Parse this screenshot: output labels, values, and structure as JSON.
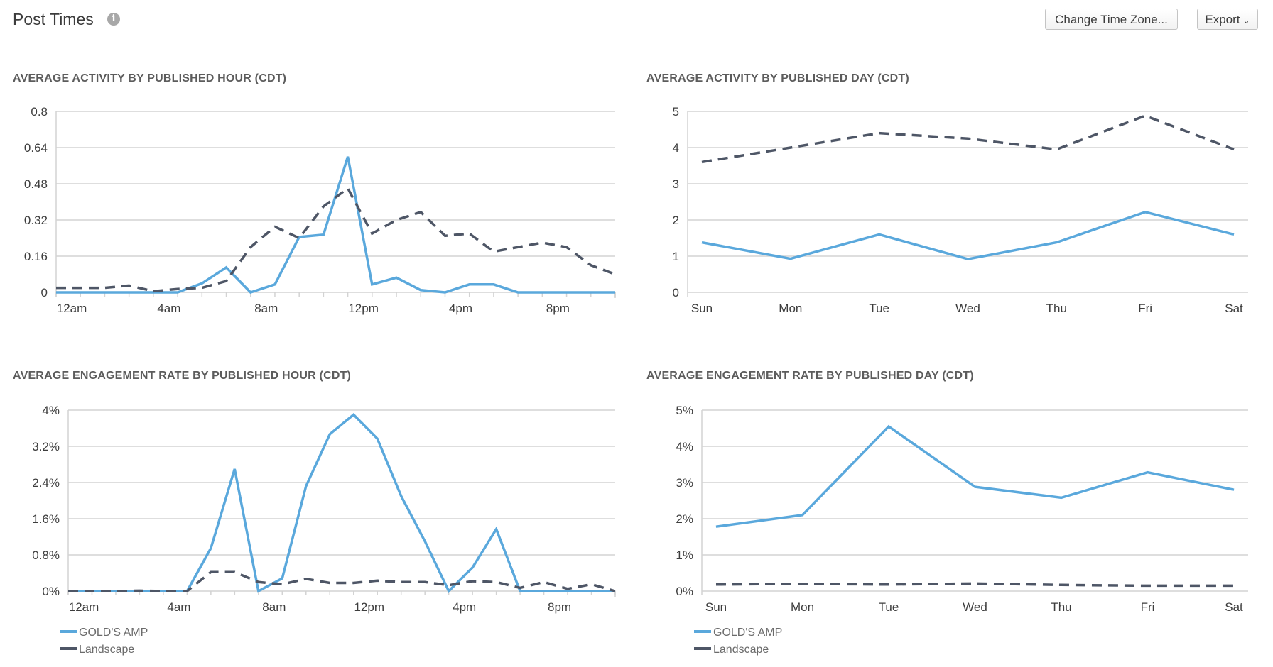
{
  "header": {
    "title": "Post Times",
    "change_tz_label": "Change Time Zone...",
    "export_label": "Export",
    "export_chevron": "⌄"
  },
  "colors": {
    "series_primary": "#5aa8dc",
    "series_secondary": "#4e5666",
    "grid": "#d3d3d3",
    "axis_text": "#3d3d3d"
  },
  "legend": [
    {
      "name": "GOLD'S AMP",
      "style": "solid"
    },
    {
      "name": "Landscape",
      "style": "dashed"
    }
  ],
  "chart_data": [
    {
      "type": "line",
      "title": "AVERAGE ACTIVITY BY PUBLISHED HOUR (CDT)",
      "x": [
        0,
        1,
        2,
        3,
        4,
        5,
        6,
        7,
        8,
        9,
        10,
        11,
        12,
        13,
        14,
        15,
        16,
        17,
        18,
        19,
        20,
        21,
        22,
        23
      ],
      "xtick_values": [
        0,
        4,
        8,
        12,
        16,
        20
      ],
      "xtick_labels": [
        "12am",
        "4am",
        "8am",
        "12pm",
        "4pm",
        "8pm"
      ],
      "ylim": [
        0,
        0.8
      ],
      "yticks": [
        0,
        0.16,
        0.32,
        0.48,
        0.64,
        0.8
      ],
      "ytick_labels": [
        "0",
        "0.16",
        "0.32",
        "0.48",
        "0.64",
        "0.8"
      ],
      "series": [
        {
          "name": "GOLD'S AMP",
          "values": [
            0,
            0,
            0,
            0,
            0,
            0,
            0.04,
            0.11,
            0,
            0.035,
            0.245,
            0.255,
            0.6,
            0.035,
            0.065,
            0.01,
            0,
            0.035,
            0.035,
            0,
            0,
            0,
            0,
            0
          ]
        },
        {
          "name": "Landscape",
          "values": [
            0.02,
            0.02,
            0.02,
            0.03,
            0.005,
            0.015,
            0.02,
            0.05,
            0.2,
            0.29,
            0.24,
            0.38,
            0.46,
            0.26,
            0.32,
            0.355,
            0.25,
            0.26,
            0.18,
            0.2,
            0.22,
            0.2,
            0.12,
            0.08
          ]
        }
      ]
    },
    {
      "type": "line",
      "title": "AVERAGE ACTIVITY BY PUBLISHED DAY (CDT)",
      "categories": [
        "Sun",
        "Mon",
        "Tue",
        "Wed",
        "Thu",
        "Fri",
        "Sat"
      ],
      "ylim": [
        0,
        5
      ],
      "yticks": [
        0,
        1,
        2,
        3,
        4,
        5
      ],
      "ytick_labels": [
        "0",
        "1",
        "2",
        "3",
        "4",
        "5"
      ],
      "series": [
        {
          "name": "GOLD'S AMP",
          "values": [
            1.38,
            0.93,
            1.6,
            0.92,
            1.38,
            2.22,
            1.6
          ]
        },
        {
          "name": "Landscape",
          "values": [
            3.6,
            4.0,
            4.4,
            4.25,
            3.95,
            4.88,
            3.95
          ]
        }
      ]
    },
    {
      "type": "line",
      "title": "AVERAGE ENGAGEMENT RATE BY PUBLISHED HOUR (CDT)",
      "x": [
        0,
        1,
        2,
        3,
        4,
        5,
        6,
        7,
        8,
        9,
        10,
        11,
        12,
        13,
        14,
        15,
        16,
        17,
        18,
        19,
        20,
        21,
        22,
        23
      ],
      "xtick_values": [
        0,
        4,
        8,
        12,
        16,
        20
      ],
      "xtick_labels": [
        "12am",
        "4am",
        "8am",
        "12pm",
        "4pm",
        "8pm"
      ],
      "ylim": [
        0,
        4
      ],
      "yticks": [
        0,
        0.8,
        1.6,
        2.4,
        3.2,
        4
      ],
      "ytick_labels": [
        "0%",
        "0.8%",
        "1.6%",
        "2.4%",
        "3.2%",
        "4%"
      ],
      "series": [
        {
          "name": "GOLD'S AMP",
          "values": [
            0,
            0,
            0,
            0,
            0,
            0,
            0.95,
            2.7,
            0,
            0.28,
            2.32,
            3.47,
            3.9,
            3.37,
            2.1,
            1.1,
            0,
            0.52,
            1.37,
            0,
            0,
            0,
            0,
            0
          ]
        },
        {
          "name": "Landscape",
          "values": [
            0,
            0,
            0,
            0.01,
            0,
            0,
            0.42,
            0.42,
            0.2,
            0.15,
            0.27,
            0.18,
            0.18,
            0.23,
            0.2,
            0.2,
            0.13,
            0.22,
            0.2,
            0.07,
            0.2,
            0.05,
            0.15,
            0
          ]
        }
      ]
    },
    {
      "type": "line",
      "title": "AVERAGE ENGAGEMENT RATE BY PUBLISHED DAY (CDT)",
      "categories": [
        "Sun",
        "Mon",
        "Tue",
        "Wed",
        "Thu",
        "Fri",
        "Sat"
      ],
      "ylim": [
        0,
        5
      ],
      "yticks": [
        0,
        1,
        2,
        3,
        4,
        5
      ],
      "ytick_labels": [
        "0%",
        "1%",
        "2%",
        "3%",
        "4%",
        "5%"
      ],
      "series": [
        {
          "name": "GOLD'S AMP",
          "values": [
            1.78,
            2.1,
            4.55,
            2.88,
            2.58,
            3.28,
            2.8
          ]
        },
        {
          "name": "Landscape",
          "values": [
            0.18,
            0.2,
            0.18,
            0.21,
            0.17,
            0.15,
            0.15
          ]
        }
      ]
    }
  ]
}
